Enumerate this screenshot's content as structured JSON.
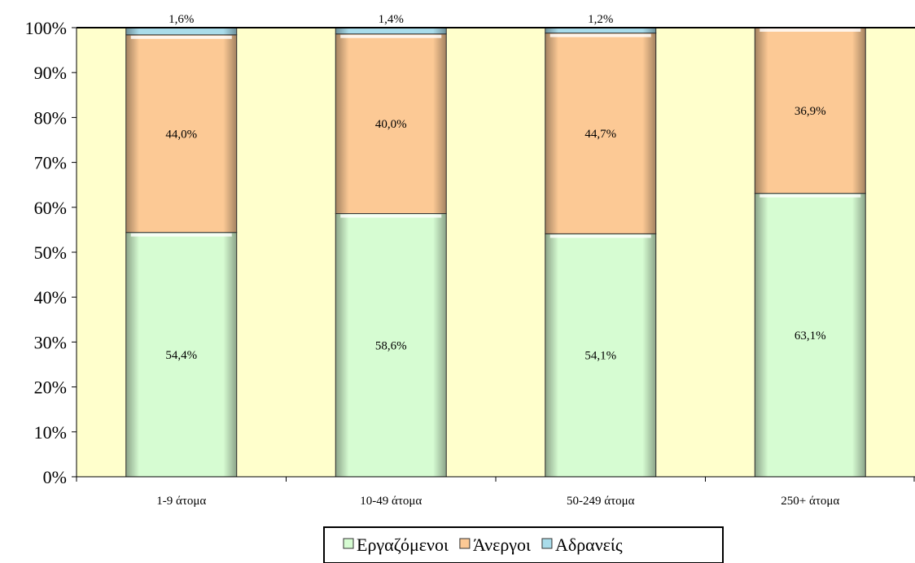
{
  "chart_data": {
    "type": "bar",
    "stacked": true,
    "categories": [
      "1-9 άτομα",
      "10-49 άτομα",
      "50-249 άτομα",
      "250+ άτομα"
    ],
    "series": [
      {
        "name": "Εργαζόμενοι",
        "values": [
          54.4,
          58.6,
          54.1,
          63.1
        ],
        "labels": [
          "54,4%",
          "58,6%",
          "54,1%",
          "63,1%"
        ],
        "color": "#d6fcd2"
      },
      {
        "name": "Άνεργοι",
        "values": [
          44.0,
          40.0,
          44.7,
          36.9
        ],
        "labels": [
          "44,0%",
          "40,0%",
          "44,7%",
          "36,9%"
        ],
        "color": "#fcc995"
      },
      {
        "name": "Αδρανείς",
        "values": [
          1.6,
          1.4,
          1.2,
          0
        ],
        "labels": [
          "1,6%",
          "1,4%",
          "1,2%",
          ""
        ],
        "color": "#a9dcea"
      }
    ],
    "ylim": [
      0,
      100
    ],
    "yticks": [
      "0%",
      "10%",
      "20%",
      "30%",
      "40%",
      "50%",
      "60%",
      "70%",
      "80%",
      "90%",
      "100%"
    ],
    "title": "",
    "xlabel": "",
    "ylabel": "",
    "grid": false,
    "legend_position": "bottom",
    "plot_background": "#ffffcc"
  }
}
